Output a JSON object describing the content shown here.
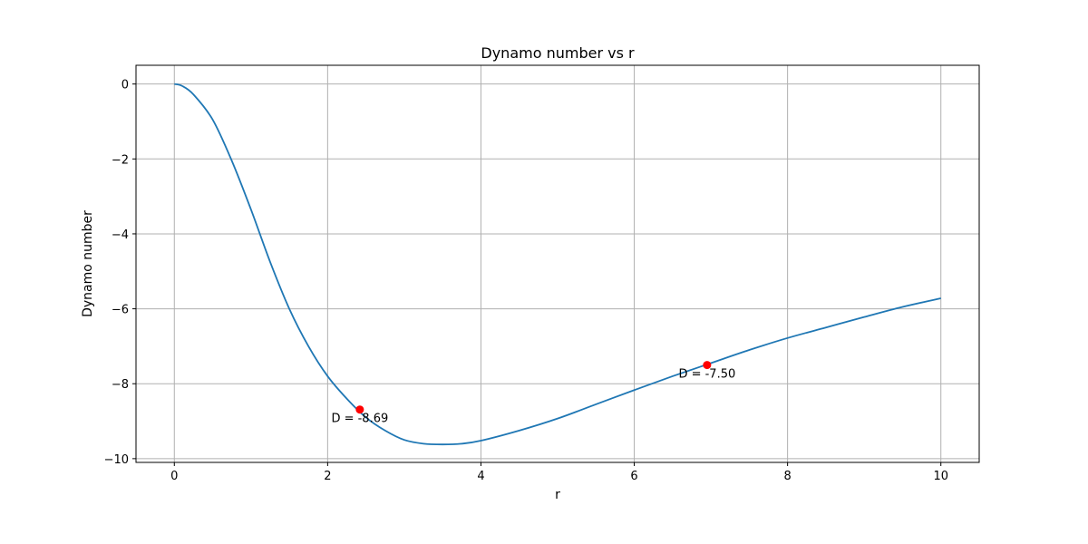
{
  "chart_data": {
    "type": "line",
    "title": "Dynamo number vs r",
    "xlabel": "r",
    "ylabel": "Dynamo number",
    "xlim": [
      -0.5,
      10.5
    ],
    "ylim": [
      -10.1,
      0.5
    ],
    "xticks": [
      0,
      2,
      4,
      6,
      8,
      10
    ],
    "yticks": [
      0,
      -2,
      -4,
      -6,
      -8,
      -10
    ],
    "xtick_labels": [
      "0",
      "2",
      "4",
      "6",
      "8",
      "10"
    ],
    "ytick_labels": [
      "0",
      "−2",
      "−4",
      "−6",
      "−8",
      "−10"
    ],
    "grid": true,
    "series": [
      {
        "color": "#1f77b4",
        "x": [
          0.0,
          0.1,
          0.25,
          0.5,
          0.75,
          1.0,
          1.25,
          1.5,
          1.75,
          2.0,
          2.25,
          2.5,
          2.75,
          3.0,
          3.25,
          3.5,
          3.75,
          4.0,
          4.5,
          5.0,
          5.5,
          6.0,
          6.5,
          7.0,
          7.5,
          8.0,
          8.5,
          9.0,
          9.5,
          10.0
        ],
        "y": [
          0.0,
          -0.05,
          -0.28,
          -0.95,
          -2.05,
          -3.35,
          -4.75,
          -6.0,
          -7.0,
          -7.8,
          -8.4,
          -8.9,
          -9.25,
          -9.5,
          -9.6,
          -9.62,
          -9.6,
          -9.52,
          -9.25,
          -8.93,
          -8.55,
          -8.17,
          -7.8,
          -7.45,
          -7.1,
          -6.78,
          -6.5,
          -6.22,
          -5.95,
          -5.72
        ]
      }
    ],
    "markers": [
      {
        "x": 2.42,
        "y": -8.69,
        "color": "#ff0000",
        "label": "D = -8.69"
      },
      {
        "x": 6.95,
        "y": -7.5,
        "color": "#ff0000",
        "label": "D = -7.50"
      }
    ]
  }
}
